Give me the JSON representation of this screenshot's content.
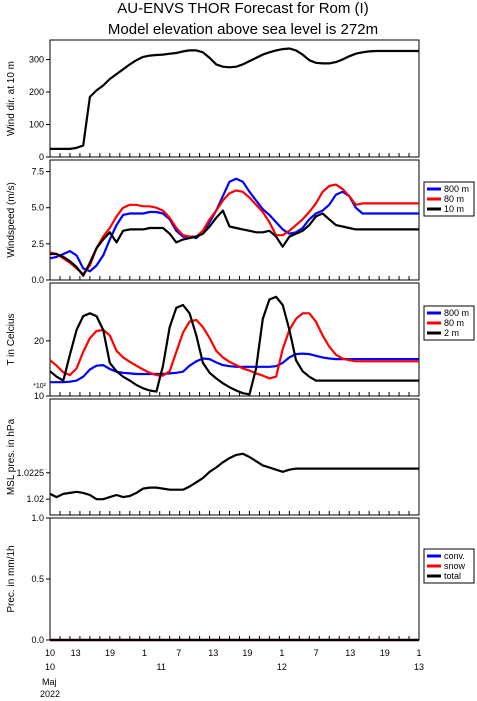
{
  "title_line1": "AU-ENVS THOR Forecast for Rom (I)",
  "title_line2": "Model elevation above sea level is  272m",
  "colors": {
    "blue": "#0000ff",
    "red": "#ff0000",
    "black": "#000000"
  },
  "x_axis": {
    "hour_labels": [
      "10",
      "13",
      "19",
      "1",
      "7",
      "13",
      "19",
      "1",
      "7",
      "13",
      "19",
      "1"
    ],
    "date_labels": [
      "10",
      "11",
      "12",
      "13"
    ],
    "month_label": "Maj",
    "year_label": "2022"
  },
  "chart_data": [
    {
      "type": "line",
      "ylabel": "Wind dir. at 10 m",
      "ylim": [
        0,
        360
      ],
      "yticks": [
        "0",
        "100",
        "200",
        "300"
      ],
      "x": [
        10,
        12,
        14,
        16,
        18,
        19,
        20,
        22,
        24,
        26,
        28,
        30,
        32,
        34,
        36,
        38,
        40,
        42,
        44,
        46,
        48,
        50,
        52,
        54,
        56,
        58,
        60,
        62,
        64,
        66,
        68,
        70,
        72,
        74,
        76,
        78,
        80,
        82,
        84,
        86,
        88,
        90,
        92,
        94,
        96,
        98,
        100,
        102,
        104,
        106,
        108,
        110,
        112,
        114,
        116,
        118,
        120,
        121
      ],
      "series": [
        {
          "color": "black",
          "values": [
            25,
            25,
            25,
            25,
            28,
            32,
            35,
            185,
            205,
            220,
            240,
            255,
            270,
            285,
            298,
            308,
            312,
            314,
            315,
            318,
            320,
            325,
            328,
            328,
            322,
            305,
            285,
            278,
            276,
            278,
            285,
            295,
            305,
            315,
            322,
            328,
            332,
            334,
            328,
            315,
            298,
            290,
            288,
            288,
            292,
            300,
            310,
            318,
            322,
            325,
            326,
            326,
            326,
            326,
            326,
            326,
            326,
            326
          ]
        }
      ]
    },
    {
      "type": "line",
      "ylabel": "Windspeed (m/s)",
      "ylim": [
        0,
        8.3
      ],
      "yticks": [
        "0.0",
        "2.5",
        "5.0",
        "7.5"
      ],
      "legend": [
        "800 m",
        "80 m",
        "10 m"
      ],
      "x": [
        10,
        12,
        14,
        16,
        18,
        20,
        22,
        24,
        26,
        28,
        30,
        32,
        34,
        36,
        38,
        40,
        42,
        44,
        46,
        48,
        50,
        52,
        54,
        56,
        58,
        60,
        62,
        64,
        66,
        68,
        70,
        72,
        74,
        76,
        78,
        80,
        82,
        84,
        86,
        88,
        90,
        92,
        94,
        96,
        98,
        100,
        102,
        104,
        106,
        108,
        110,
        112,
        114,
        116,
        118,
        120,
        121
      ],
      "series": [
        {
          "name": "800 m",
          "color": "blue",
          "values": [
            1.5,
            1.6,
            1.8,
            2.0,
            1.7,
            0.8,
            0.6,
            1.0,
            1.7,
            2.8,
            3.8,
            4.5,
            4.6,
            4.6,
            4.6,
            4.7,
            4.7,
            4.6,
            4.2,
            3.4,
            3.0,
            3.0,
            2.9,
            3.3,
            4.0,
            4.8,
            5.8,
            6.8,
            7.0,
            6.8,
            6.1,
            5.5,
            4.9,
            4.5,
            4.0,
            3.5,
            3.2,
            3.3,
            3.6,
            4.2,
            4.6,
            4.8,
            5.2,
            5.9,
            6.1,
            5.8,
            5.0,
            4.6,
            4.6,
            4.6,
            4.6,
            4.6,
            4.6,
            4.6,
            4.6,
            4.6,
            4.6
          ]
        },
        {
          "name": "80 m",
          "color": "red",
          "values": [
            1.9,
            1.8,
            1.5,
            1.2,
            0.8,
            0.4,
            1.0,
            2.2,
            3.0,
            3.6,
            4.4,
            5.0,
            5.2,
            5.2,
            5.1,
            5.1,
            5.0,
            4.8,
            4.3,
            3.6,
            3.1,
            3.0,
            3.0,
            3.4,
            4.2,
            4.8,
            5.5,
            6.0,
            6.2,
            6.1,
            5.7,
            5.2,
            4.7,
            4.0,
            3.1,
            3.1,
            3.4,
            3.8,
            4.2,
            4.7,
            5.3,
            6.1,
            6.5,
            6.6,
            6.3,
            5.8,
            5.2,
            5.3,
            5.3,
            5.3,
            5.3,
            5.3,
            5.3,
            5.3,
            5.3,
            5.3,
            5.3
          ]
        },
        {
          "name": "10 m",
          "color": "black",
          "values": [
            1.8,
            1.8,
            1.6,
            1.3,
            0.9,
            0.3,
            1.2,
            2.2,
            2.8,
            3.3,
            2.6,
            3.4,
            3.5,
            3.5,
            3.5,
            3.6,
            3.6,
            3.6,
            3.2,
            2.6,
            2.8,
            2.9,
            3.0,
            3.2,
            3.7,
            4.3,
            4.8,
            3.7,
            3.6,
            3.5,
            3.4,
            3.3,
            3.3,
            3.4,
            3.0,
            2.3,
            3.0,
            3.2,
            3.4,
            3.8,
            4.4,
            4.6,
            4.2,
            3.8,
            3.7,
            3.6,
            3.5,
            3.5,
            3.5,
            3.5,
            3.5,
            3.5,
            3.5,
            3.5,
            3.5,
            3.5,
            3.5
          ]
        }
      ]
    },
    {
      "type": "line",
      "ylabel": "T in Celcius",
      "ylim": [
        10,
        30.5
      ],
      "yticks": [
        "10",
        "20"
      ],
      "multiplier_label": "*10²",
      "legend": [
        "800 m",
        "80 m",
        "2 m"
      ],
      "x": [
        10,
        12,
        14,
        16,
        18,
        20,
        22,
        24,
        26,
        28,
        30,
        32,
        34,
        36,
        38,
        40,
        42,
        44,
        46,
        48,
        50,
        52,
        54,
        56,
        58,
        60,
        62,
        64,
        66,
        68,
        70,
        72,
        74,
        76,
        78,
        80,
        82,
        84,
        86,
        88,
        90,
        92,
        94,
        96,
        98,
        100,
        102,
        104,
        106,
        108,
        110,
        112,
        114,
        116,
        118,
        120,
        121
      ],
      "series": [
        {
          "name": "800 m",
          "color": "blue",
          "values": [
            12.5,
            12.5,
            12.5,
            12.6,
            12.8,
            13.5,
            14.8,
            15.5,
            15.6,
            14.9,
            14.4,
            14.2,
            14.1,
            14.0,
            14.0,
            14.0,
            14.0,
            14.0,
            14.1,
            14.2,
            14.4,
            15.5,
            16.3,
            16.8,
            16.7,
            16.1,
            15.6,
            15.4,
            15.3,
            15.3,
            15.3,
            15.3,
            15.3,
            15.3,
            15.4,
            16.0,
            17.0,
            17.6,
            17.7,
            17.6,
            17.3,
            17.0,
            16.8,
            16.7,
            16.7,
            16.7,
            16.7,
            16.7,
            16.7,
            16.7,
            16.7,
            16.7,
            16.7,
            16.7,
            16.7,
            16.7,
            16.7
          ]
        },
        {
          "name": "80 m",
          "color": "red",
          "values": [
            16.5,
            15.5,
            14.3,
            13.8,
            15.0,
            18.0,
            20.5,
            21.8,
            22.0,
            21.0,
            18.2,
            17.0,
            16.2,
            15.5,
            14.8,
            14.2,
            13.8,
            13.7,
            14.5,
            18.0,
            21.5,
            23.5,
            23.8,
            22.5,
            20.5,
            18.2,
            17.0,
            16.2,
            15.6,
            15.0,
            14.6,
            14.1,
            13.7,
            13.2,
            13.5,
            18.5,
            22.0,
            24.0,
            25.0,
            25.0,
            23.5,
            21.0,
            19.0,
            17.5,
            16.8,
            16.5,
            16.3,
            16.3,
            16.3,
            16.3,
            16.3,
            16.3,
            16.3,
            16.3,
            16.3,
            16.3,
            16.3
          ]
        },
        {
          "name": "2 m",
          "color": "black",
          "values": [
            14.5,
            13.5,
            12.8,
            17.5,
            22.0,
            24.5,
            25.0,
            24.5,
            22.0,
            16.0,
            14.5,
            13.5,
            12.8,
            12.0,
            11.4,
            11.0,
            10.8,
            15.5,
            22.5,
            26.0,
            26.5,
            25.0,
            21.0,
            16.0,
            14.2,
            13.2,
            12.3,
            11.6,
            11.0,
            10.5,
            10.3,
            15.0,
            24.0,
            27.5,
            28.0,
            26.5,
            22.0,
            16.5,
            14.5,
            13.5,
            12.8,
            12.8,
            12.8,
            12.8,
            12.8,
            12.8,
            12.8,
            12.8,
            12.8,
            12.8,
            12.8,
            12.8,
            12.8,
            12.8,
            12.8,
            12.8,
            12.8
          ]
        }
      ]
    },
    {
      "type": "line",
      "ylabel": "MSL pres. in hPa",
      "ylim": [
        1.0185,
        1.0295
      ],
      "yticks": [
        "1.02",
        "1.0225"
      ],
      "x": [
        10,
        12,
        14,
        16,
        18,
        20,
        22,
        24,
        26,
        28,
        30,
        32,
        34,
        36,
        38,
        40,
        42,
        44,
        46,
        48,
        50,
        52,
        54,
        56,
        58,
        60,
        62,
        64,
        66,
        68,
        70,
        72,
        74,
        76,
        78,
        80,
        82,
        84,
        86,
        88,
        90,
        92,
        94,
        96,
        98,
        100,
        102,
        104,
        106,
        108,
        110,
        112,
        114,
        116,
        118,
        120,
        121
      ],
      "series": [
        {
          "color": "black",
          "values": [
            1.0205,
            1.0202,
            1.0205,
            1.0206,
            1.0207,
            1.0206,
            1.0204,
            1.02,
            1.02,
            1.0202,
            1.0204,
            1.0202,
            1.0203,
            1.0206,
            1.021,
            1.0211,
            1.0211,
            1.021,
            1.0209,
            1.0209,
            1.0209,
            1.0212,
            1.0216,
            1.022,
            1.0226,
            1.023,
            1.0235,
            1.0239,
            1.0242,
            1.0243,
            1.024,
            1.0236,
            1.0232,
            1.023,
            1.0228,
            1.0226,
            1.0228,
            1.0229,
            1.0229,
            1.0229,
            1.0229,
            1.0229,
            1.0229,
            1.0229,
            1.0229,
            1.0229,
            1.0229,
            1.0229,
            1.0229,
            1.0229,
            1.0229,
            1.0229,
            1.0229,
            1.0229,
            1.0229,
            1.0229,
            1.0229
          ]
        }
      ]
    },
    {
      "type": "line",
      "ylabel": "Prec. in mm/1h",
      "ylim": [
        0,
        1.0
      ],
      "yticks": [
        "0.0",
        "0.5",
        "1.0"
      ],
      "legend": [
        "conv.",
        "snow",
        "total"
      ],
      "x": [
        10,
        121
      ],
      "series": [
        {
          "name": "conv.",
          "color": "blue",
          "values": [
            0,
            0
          ]
        },
        {
          "name": "snow",
          "color": "red",
          "values": [
            0,
            0
          ]
        },
        {
          "name": "total",
          "color": "black",
          "values": [
            0,
            0
          ]
        }
      ]
    }
  ]
}
